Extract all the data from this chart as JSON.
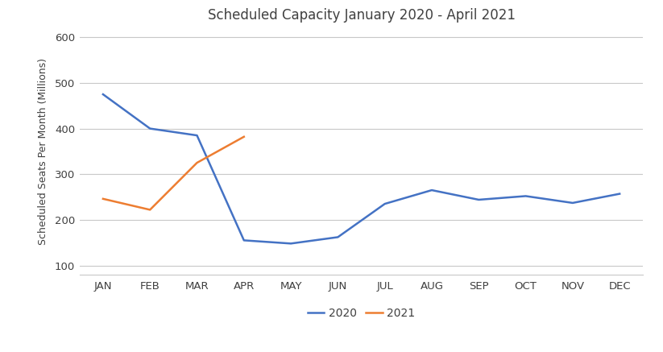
{
  "title": "Scheduled Capacity January 2020 - April 2021",
  "ylabel": "Scheduled Seats Per Month (Millions)",
  "xlabel": "",
  "months": [
    "JAN",
    "FEB",
    "MAR",
    "APR",
    "MAY",
    "JUN",
    "JUL",
    "AUG",
    "SEP",
    "OCT",
    "NOV",
    "DEC"
  ],
  "data_2020": [
    475,
    400,
    385,
    155,
    148,
    162,
    235,
    265,
    244,
    252,
    237,
    257
  ],
  "data_2021": [
    246,
    222,
    325,
    382,
    null,
    null,
    null,
    null,
    null,
    null,
    null,
    null
  ],
  "color_2020": "#4472C4",
  "color_2021": "#ED7D31",
  "ylim": [
    80,
    620
  ],
  "yticks": [
    100,
    200,
    300,
    400,
    500,
    600
  ],
  "legend_labels": [
    "2020",
    "2021"
  ],
  "background_color": "#ffffff",
  "grid_color": "#c8c8c8",
  "title_fontsize": 12,
  "axis_label_fontsize": 9,
  "tick_fontsize": 9.5,
  "legend_fontsize": 10,
  "line_width": 1.8
}
